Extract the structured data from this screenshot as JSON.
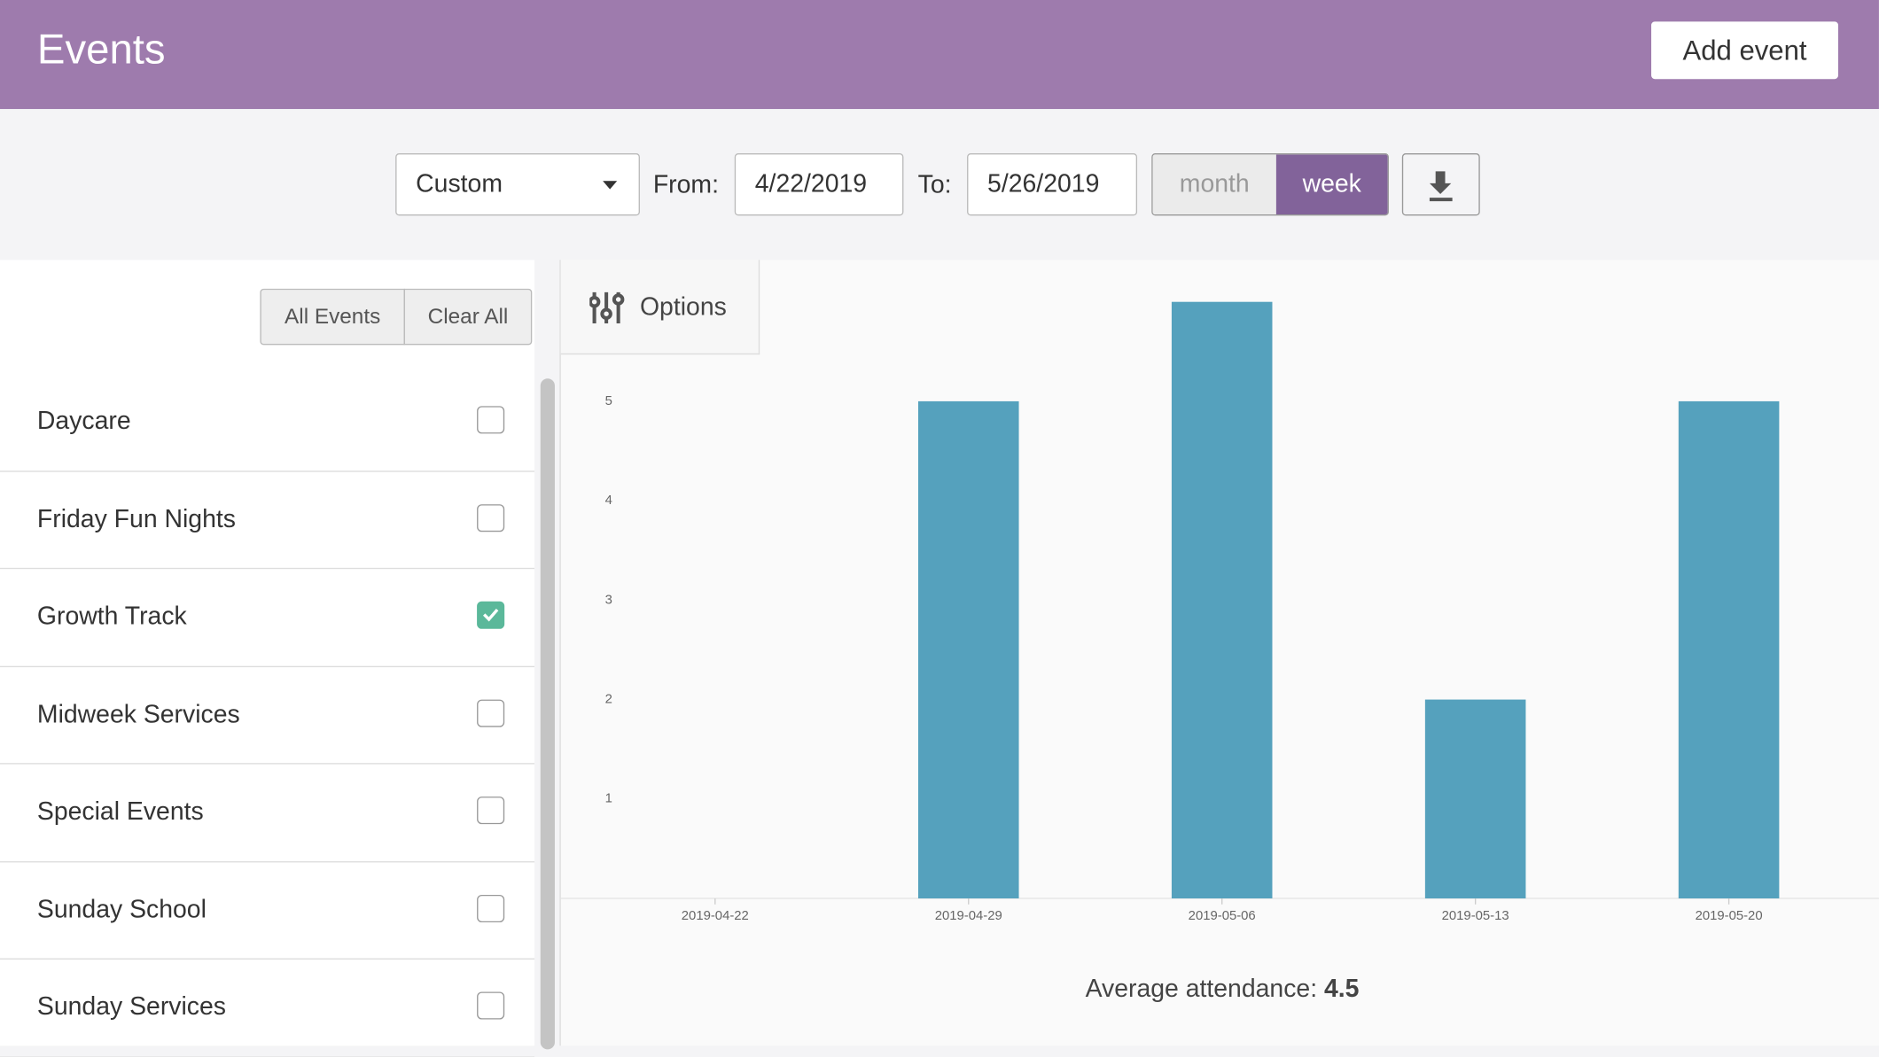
{
  "header": {
    "title": "Events",
    "add_button": "Add event"
  },
  "filters": {
    "period": "Custom",
    "from_label": "From:",
    "from": "4/22/2019",
    "to_label": "To:",
    "to": "5/26/2019",
    "grouping": [
      "month",
      "week"
    ],
    "selected_grouping": "week"
  },
  "sidebar": {
    "all_button": "All Events",
    "clear_button": "Clear All",
    "events": [
      {
        "label": "Daycare",
        "checked": false
      },
      {
        "label": "Friday Fun Nights",
        "checked": false
      },
      {
        "label": "Growth Track",
        "checked": true
      },
      {
        "label": "Midweek Services",
        "checked": false
      },
      {
        "label": "Special Events",
        "checked": false
      },
      {
        "label": "Sunday School",
        "checked": false
      },
      {
        "label": "Sunday Services",
        "checked": false
      }
    ]
  },
  "options_tab": "Options",
  "chart_data": {
    "type": "bar",
    "categories": [
      "2019-04-22",
      "2019-04-29",
      "2019-05-06",
      "2019-05-13",
      "2019-05-20"
    ],
    "values": [
      null,
      5,
      6,
      2,
      5
    ],
    "color": "#55a1bd",
    "ylim": [
      0,
      6
    ],
    "yticks": [
      1,
      2,
      3,
      4,
      5
    ],
    "grid": false
  },
  "summary": {
    "label": "Average attendance:",
    "value": 4.5
  }
}
